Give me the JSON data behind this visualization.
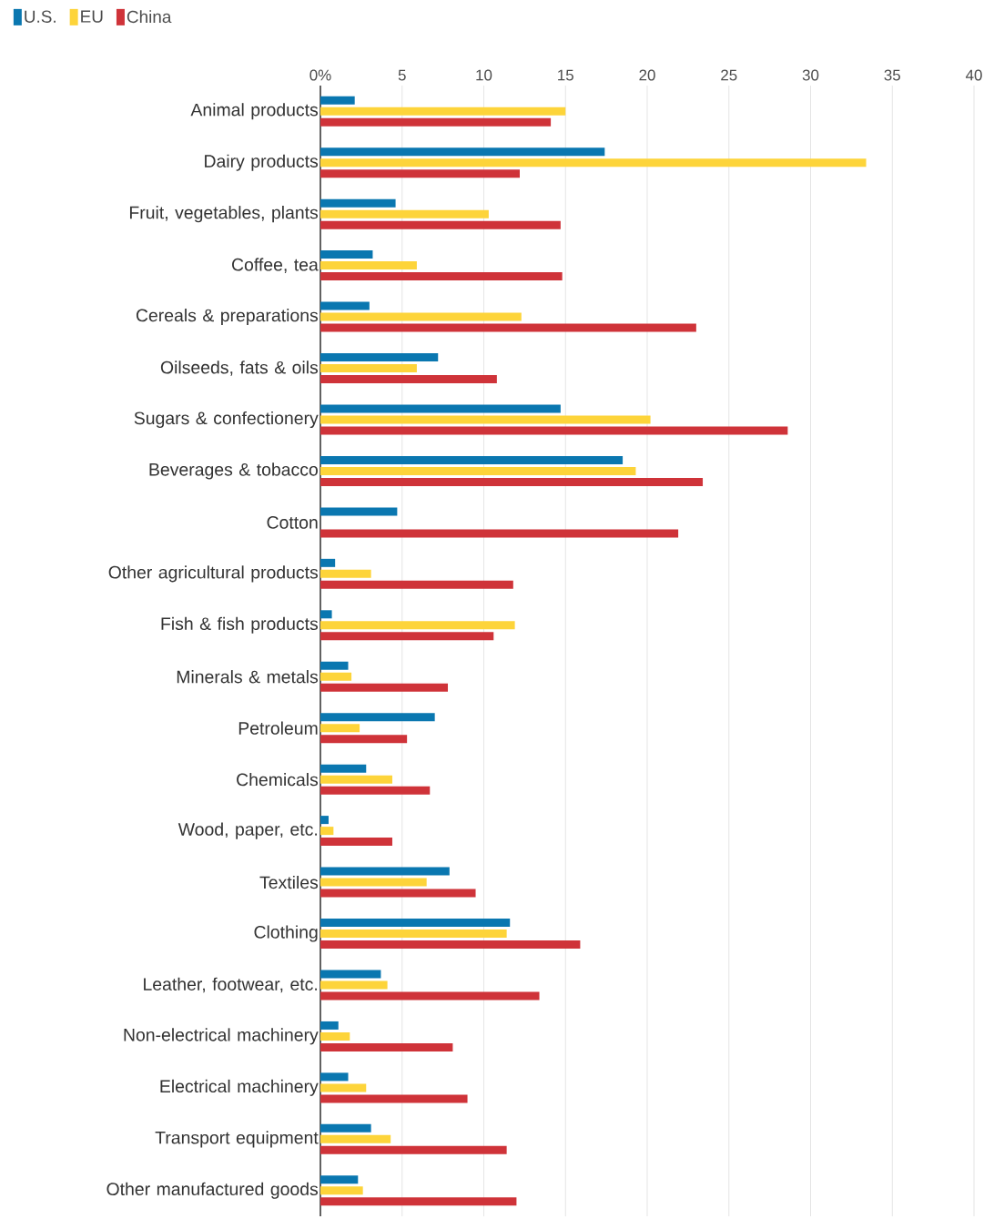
{
  "chart_data": {
    "type": "bar",
    "orientation": "horizontal",
    "categories": [
      "Animal products",
      "Dairy products",
      "Fruit, vegetables, plants",
      "Coffee, tea",
      "Cereals & preparations",
      "Oilseeds, fats & oils",
      "Sugars & confectionery",
      "Beverages & tobacco",
      "Cotton",
      "Other agricultural products",
      "Fish & fish products",
      "Minerals & metals",
      "Petroleum",
      "Chemicals",
      "Wood, paper, etc.",
      "Textiles",
      "Clothing",
      "Leather, footwear, etc.",
      "Non-electrical machinery",
      "Electrical machinery",
      "Transport equipment",
      "Other manufactured goods"
    ],
    "series": [
      {
        "name": "U.S.",
        "color": "#0a77b0",
        "values": [
          2.1,
          17.4,
          4.6,
          3.2,
          3.0,
          7.2,
          14.7,
          18.5,
          4.7,
          0.9,
          0.7,
          1.7,
          7.0,
          2.8,
          0.5,
          7.9,
          11.6,
          3.7,
          1.1,
          1.7,
          3.1,
          2.3
        ]
      },
      {
        "name": "EU",
        "color": "#fdd43a",
        "values": [
          15.0,
          33.4,
          10.3,
          5.9,
          12.3,
          5.9,
          20.2,
          19.3,
          null,
          3.1,
          11.9,
          1.9,
          2.4,
          4.4,
          0.8,
          6.5,
          11.4,
          4.1,
          1.8,
          2.8,
          4.3,
          2.6
        ]
      },
      {
        "name": "China",
        "color": "#cf3339",
        "values": [
          14.1,
          12.2,
          14.7,
          14.8,
          23.0,
          10.8,
          28.6,
          23.4,
          21.9,
          11.8,
          10.6,
          7.8,
          5.3,
          6.7,
          4.4,
          9.5,
          15.9,
          13.4,
          8.1,
          9.0,
          11.4,
          12.0
        ]
      }
    ],
    "xlim": [
      0,
      40
    ],
    "xticks": [
      {
        "value": 0,
        "label": "0%"
      },
      5,
      10,
      15,
      20,
      25,
      30,
      35,
      40
    ],
    "grid": "x",
    "legend": "top left"
  }
}
